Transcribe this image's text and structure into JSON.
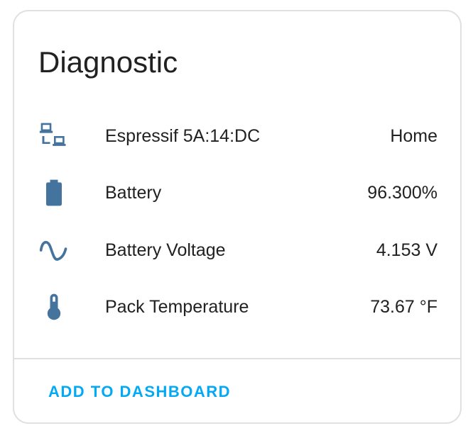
{
  "card": {
    "title": "Diagnostic",
    "icon_color": "#44739e",
    "accent_color": "#03a9f4",
    "rows": [
      {
        "icon": "lan-icon",
        "name": "Espressif 5A:14:DC",
        "value": "Home"
      },
      {
        "icon": "battery-icon",
        "name": "Battery",
        "value": "96.300%"
      },
      {
        "icon": "sine-wave-icon",
        "name": "Battery Voltage",
        "value": "4.153 V"
      },
      {
        "icon": "thermometer-icon",
        "name": "Pack Temperature",
        "value": "73.67 °F"
      }
    ],
    "action_label": "ADD TO DASHBOARD"
  }
}
